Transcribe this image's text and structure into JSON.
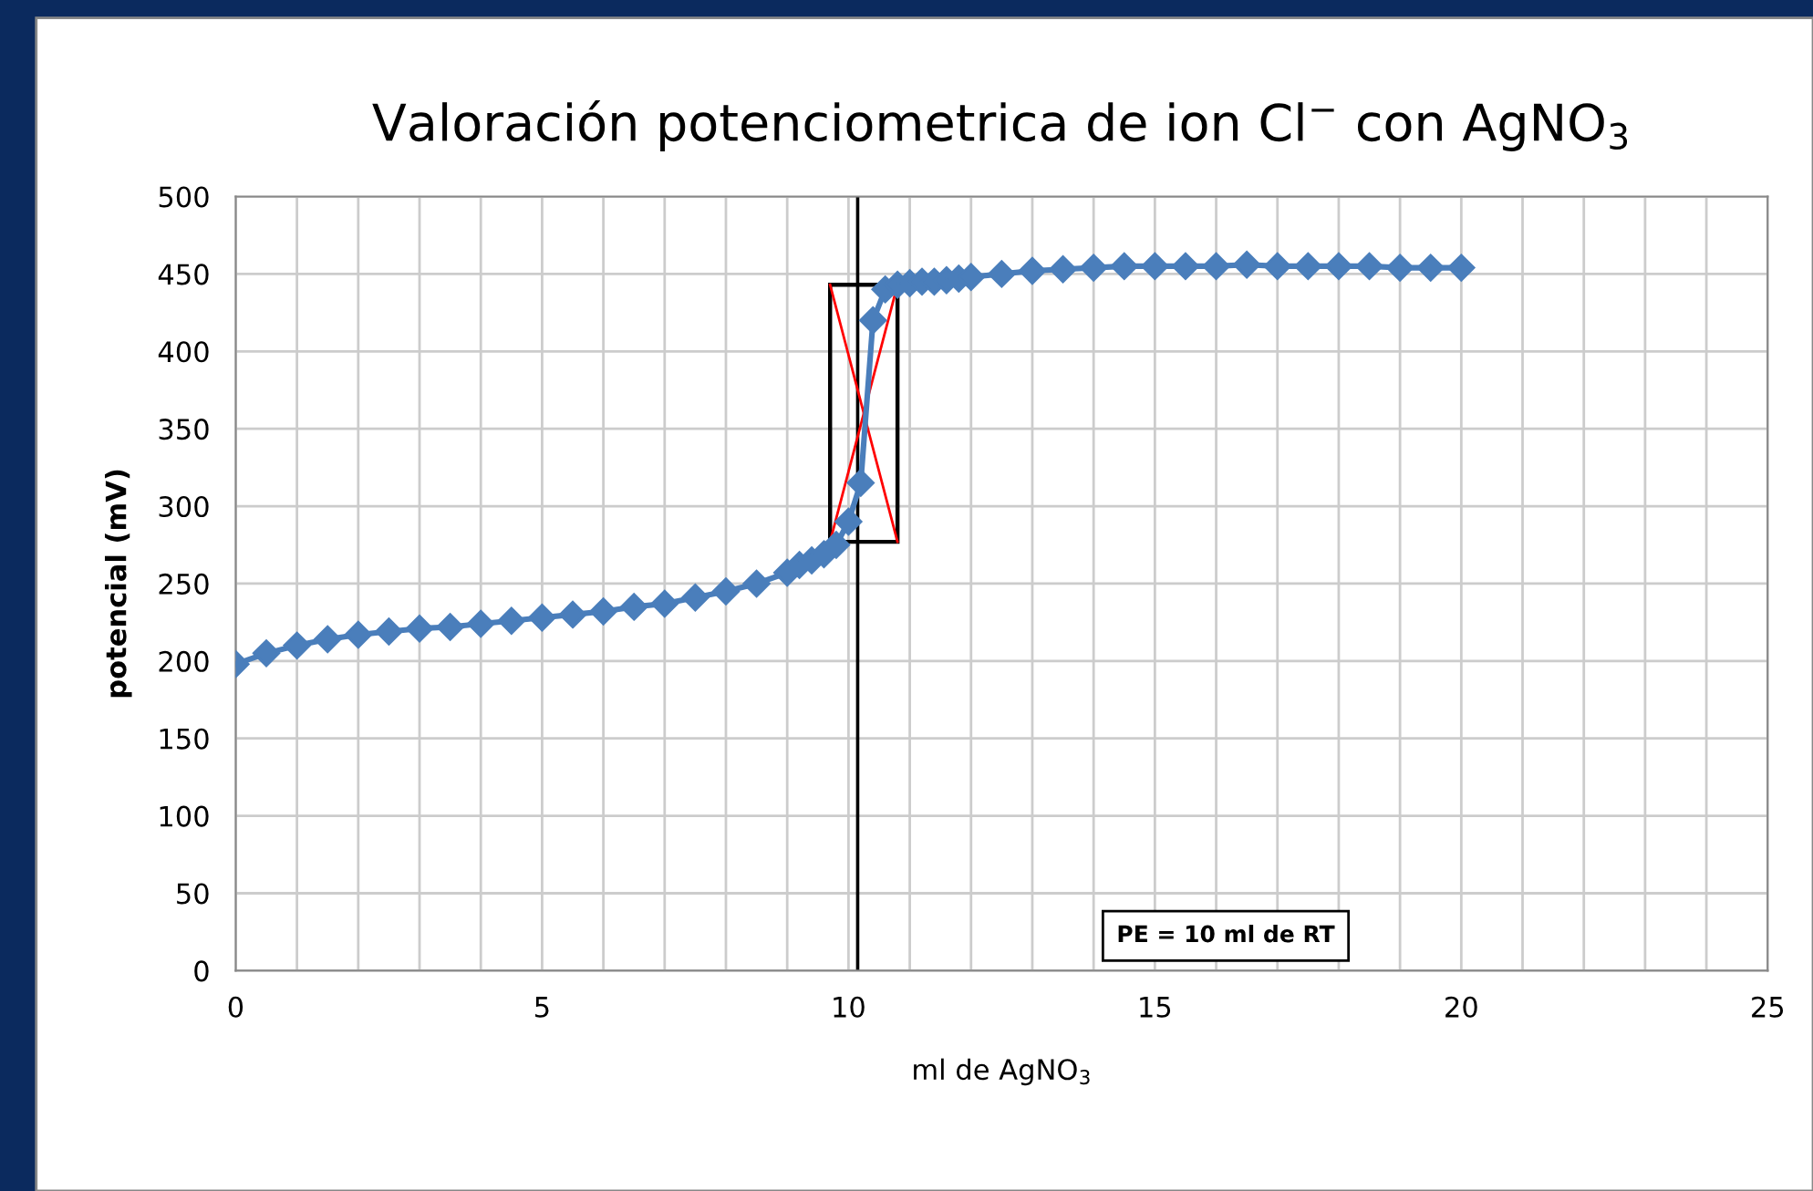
{
  "chart_data": {
    "type": "line",
    "title": "Valoración potenciometrica de ion Cl$^{−}$ con AgNO$_{3}$",
    "xlabel": "ml de AgNO$_{3}$",
    "ylabel": "potencial (mV)",
    "x": [
      0,
      0.5,
      1,
      1.5,
      2,
      2.5,
      3,
      3.5,
      4,
      4.5,
      5,
      5.5,
      6,
      6.5,
      7,
      7.5,
      8,
      8.5,
      9,
      9.2,
      9.4,
      9.6,
      9.8,
      10,
      10.2,
      10.4,
      10.6,
      10.8,
      11,
      11.2,
      11.4,
      11.6,
      11.8,
      12,
      12.5,
      13,
      13.5,
      14,
      14.5,
      15,
      15.5,
      16,
      16.5,
      17,
      17.5,
      18,
      18.5,
      19,
      19.5,
      20
    ],
    "series": [
      {
        "color": "#4a7ebb",
        "values": [
          198,
          205,
          210,
          214,
          217,
          219,
          221,
          222,
          224,
          226,
          228,
          230,
          232,
          235,
          237,
          241,
          245,
          250,
          257,
          262,
          265,
          269,
          275,
          290,
          315,
          420,
          440,
          443,
          444,
          445,
          445,
          446,
          447,
          448,
          450,
          452,
          453,
          454,
          455,
          455,
          455,
          455,
          456,
          455,
          455,
          455,
          455,
          454,
          454,
          454
        ]
      }
    ],
    "xlim": [
      0,
      25
    ],
    "xticks": [
      0,
      5,
      10,
      15,
      20,
      25
    ],
    "ylim": [
      0,
      500
    ],
    "yticks": [
      0,
      50,
      100,
      150,
      200,
      250,
      300,
      350,
      400,
      450,
      500
    ],
    "grid": true,
    "marker": "diamond",
    "line_style": "solid",
    "ref_lines": [
      {
        "axis": "x",
        "value": 10.15,
        "color": "#000000"
      }
    ],
    "annotations": [
      "PE = 10 ml de RT"
    ]
  }
}
